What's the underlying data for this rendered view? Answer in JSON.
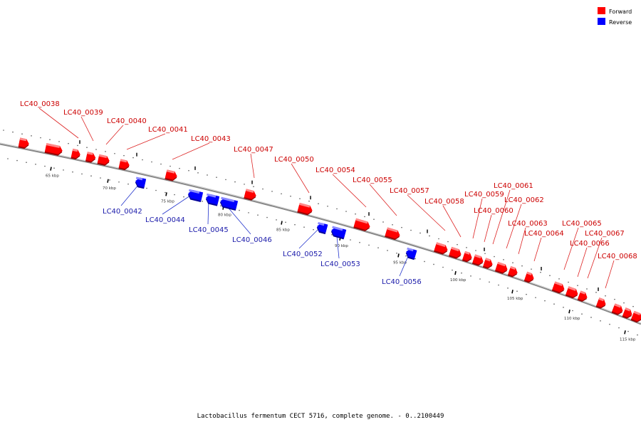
{
  "title": "Lactobacillus fermentum CECT 5716, complete genome. - 0..2100449",
  "legend": [
    {
      "label": "Forward",
      "color": "#ff0000"
    },
    {
      "label": "Reverse",
      "color": "#0000ff"
    }
  ],
  "colors": {
    "forward": "#ff0000",
    "forward_label": "#cc0000",
    "reverse": "#0000ff",
    "reverse_label": "#1a1aaa",
    "backbone": "#777777"
  },
  "ruler": {
    "unit": "kbp",
    "ticks": [
      "65 kbp",
      "70 kbp",
      "75 kbp",
      "80 kbp",
      "85 kbp",
      "90 kbp",
      "95 kbp",
      "100 kbp",
      "105 kbp",
      "110 kbp",
      "115 kbp"
    ]
  },
  "genes": [
    {
      "name": "LC40_0038",
      "strand": "forward"
    },
    {
      "name": "LC40_0039",
      "strand": "forward"
    },
    {
      "name": "LC40_0040",
      "strand": "forward"
    },
    {
      "name": "LC40_0041",
      "strand": "forward"
    },
    {
      "name": "LC40_0042",
      "strand": "reverse"
    },
    {
      "name": "LC40_0043",
      "strand": "forward"
    },
    {
      "name": "LC40_0044",
      "strand": "reverse"
    },
    {
      "name": "LC40_0045",
      "strand": "reverse"
    },
    {
      "name": "LC40_0046",
      "strand": "reverse"
    },
    {
      "name": "LC40_0047",
      "strand": "forward"
    },
    {
      "name": "LC40_0050",
      "strand": "forward"
    },
    {
      "name": "LC40_0052",
      "strand": "reverse"
    },
    {
      "name": "LC40_0053",
      "strand": "reverse"
    },
    {
      "name": "LC40_0054",
      "strand": "forward"
    },
    {
      "name": "LC40_0055",
      "strand": "forward"
    },
    {
      "name": "LC40_0056",
      "strand": "reverse"
    },
    {
      "name": "LC40_0057",
      "strand": "forward"
    },
    {
      "name": "LC40_0058",
      "strand": "forward"
    },
    {
      "name": "LC40_0059",
      "strand": "forward"
    },
    {
      "name": "LC40_0060",
      "strand": "forward"
    },
    {
      "name": "LC40_0061",
      "strand": "forward"
    },
    {
      "name": "LC40_0062",
      "strand": "forward"
    },
    {
      "name": "LC40_0063",
      "strand": "forward"
    },
    {
      "name": "LC40_0064",
      "strand": "forward"
    },
    {
      "name": "LC40_0065",
      "strand": "forward"
    },
    {
      "name": "LC40_0066",
      "strand": "forward"
    },
    {
      "name": "LC40_0067",
      "strand": "forward"
    },
    {
      "name": "LC40_0068",
      "strand": "forward"
    }
  ]
}
